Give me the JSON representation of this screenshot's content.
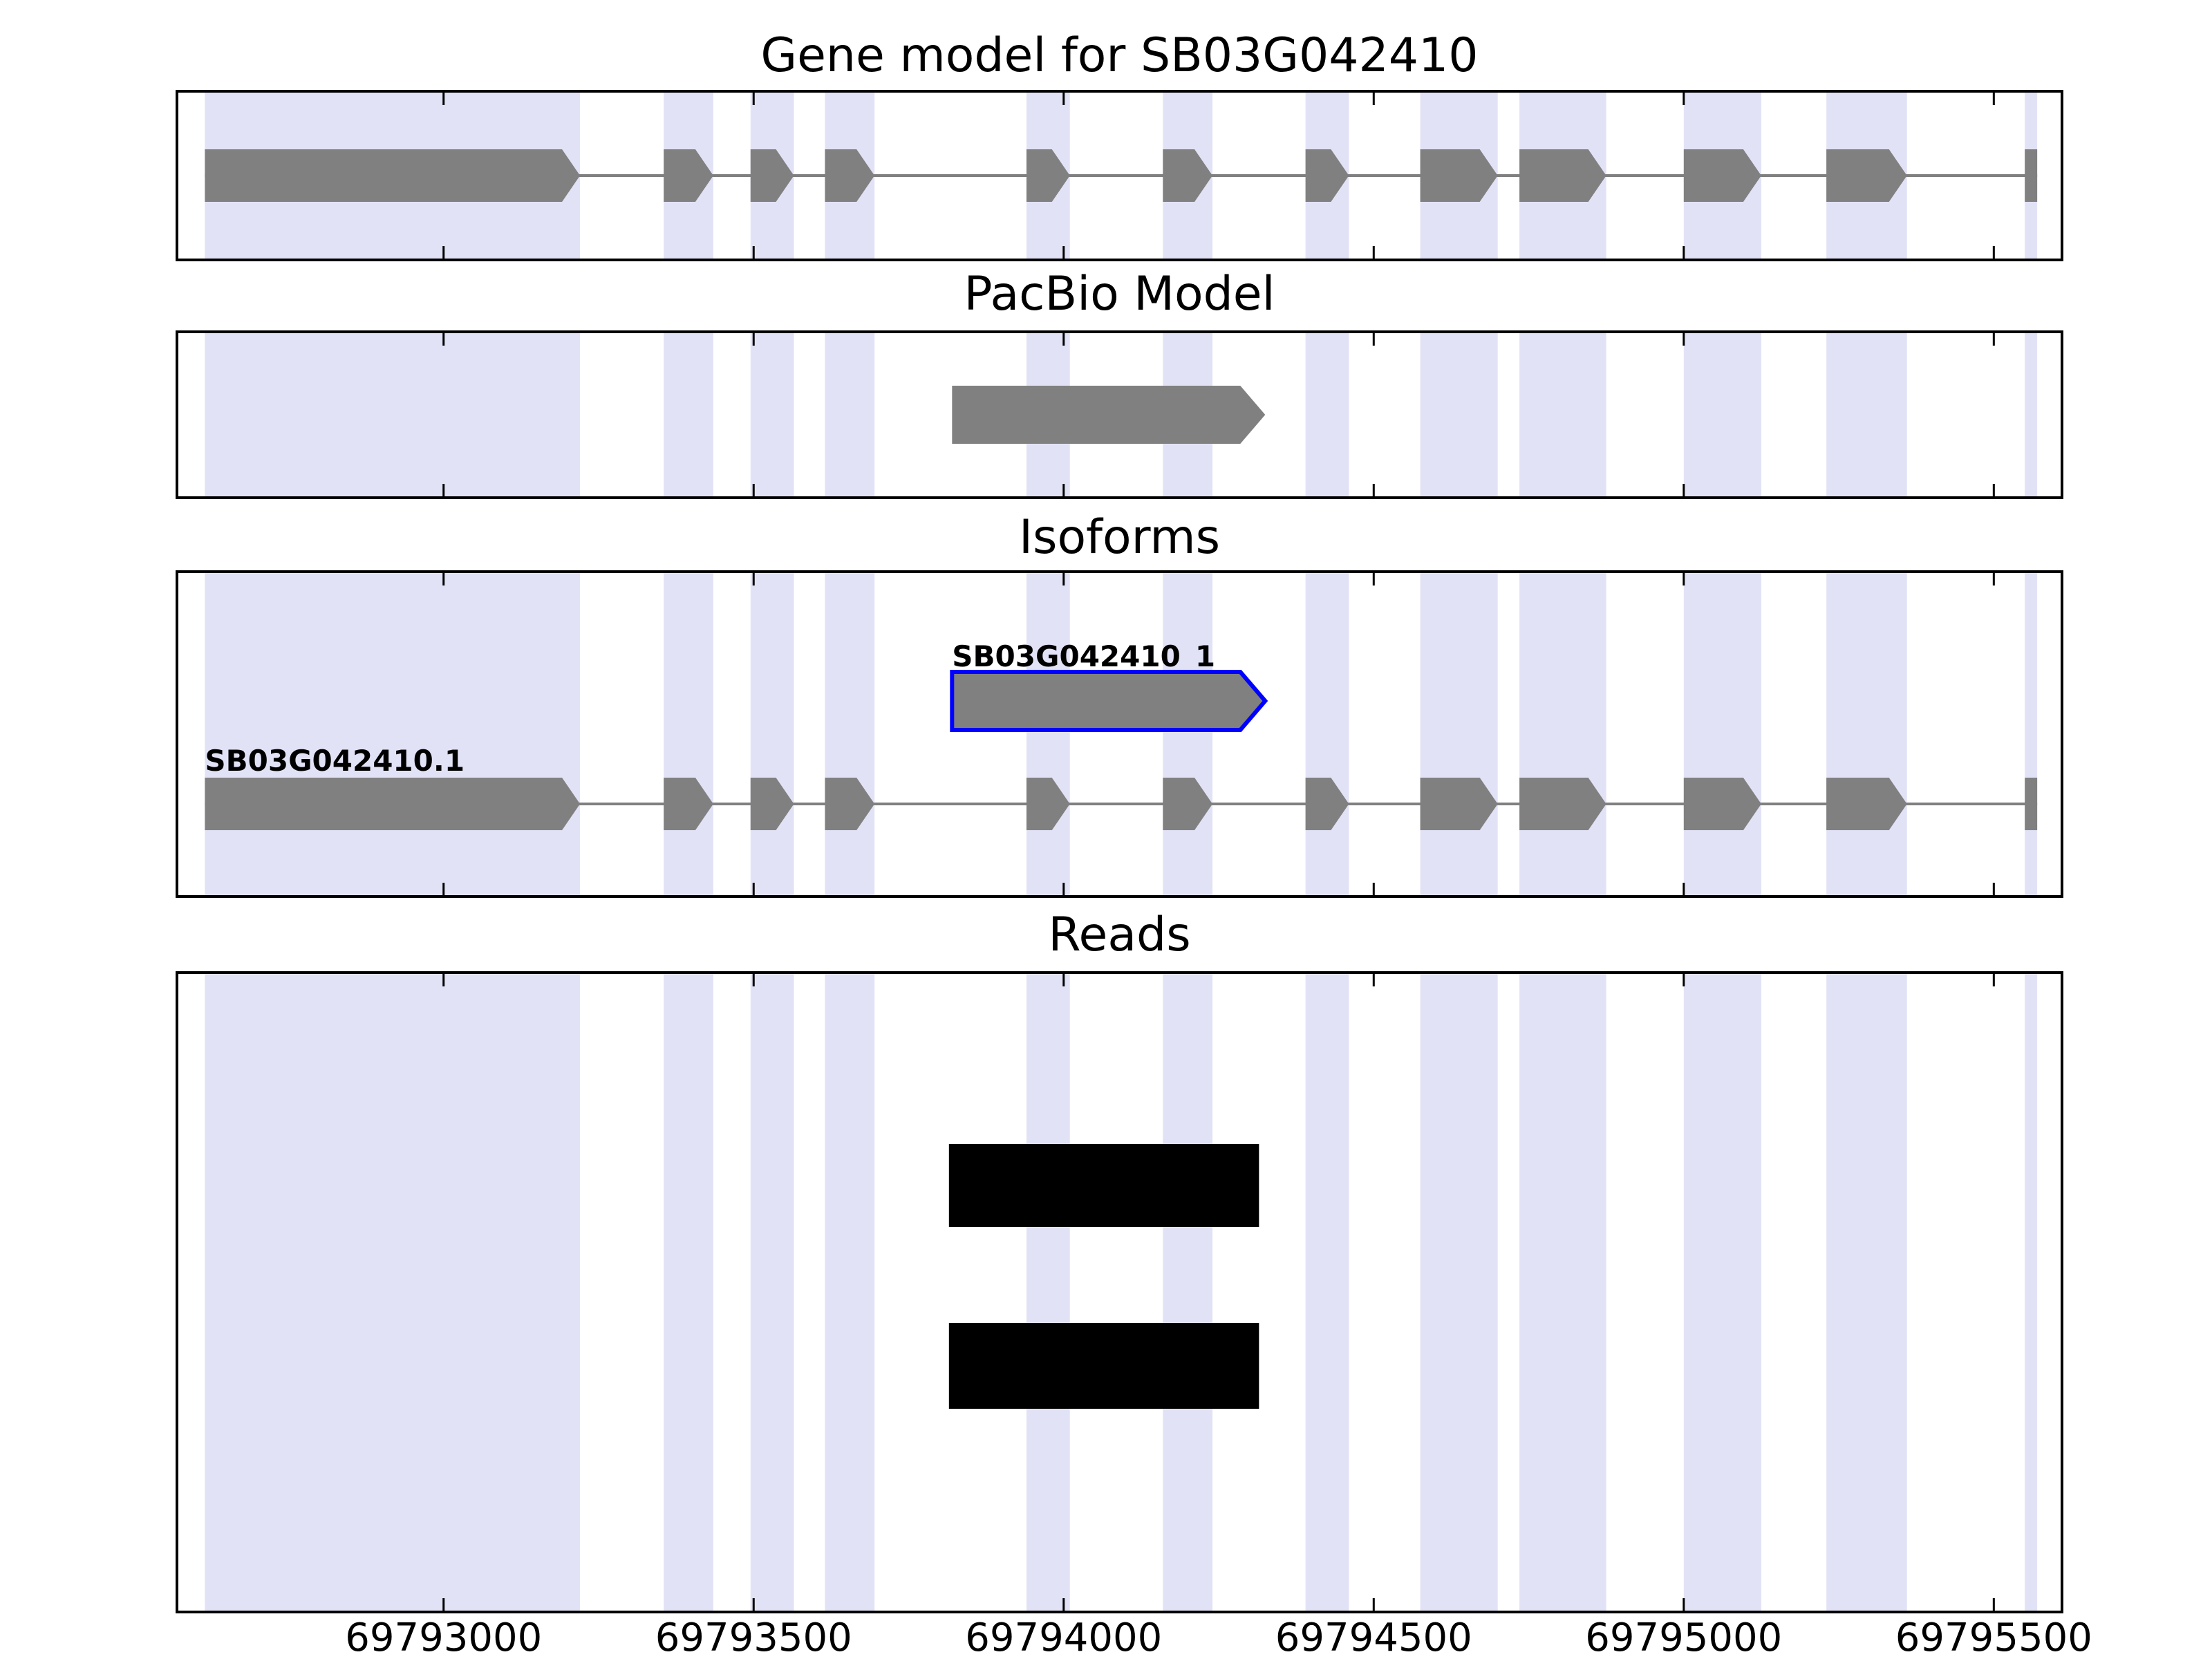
{
  "figure": {
    "background": "#ffffff"
  },
  "colors": {
    "exon_fill": "#808080",
    "intron_line": "#808080",
    "highlight_band": "#E2E2F7",
    "selected_outline": "#0000FF",
    "read_fill": "#000000",
    "panel_border": "#000000",
    "text": "#000000"
  },
  "chart_data": {
    "type": "genome-tracks",
    "title": "Gene model for SB03G042410",
    "xlim": [
      69792570,
      69795610
    ],
    "x_ticks": [
      69793000,
      69793500,
      69794000,
      69794500,
      69795000,
      69795500
    ],
    "x_tick_labels": [
      "69793000",
      "69793500",
      "69794000",
      "69794500",
      "69795000",
      "69795500"
    ],
    "grid": false,
    "highlight_regions": [
      [
        69792615,
        69793220
      ],
      [
        69793355,
        69793435
      ],
      [
        69793495,
        69793565
      ],
      [
        69793615,
        69793695
      ],
      [
        69793940,
        69794010
      ],
      [
        69794160,
        69794240
      ],
      [
        69794390,
        69794460
      ],
      [
        69794575,
        69794700
      ],
      [
        69794735,
        69794875
      ],
      [
        69795000,
        69795125
      ],
      [
        69795230,
        69795360
      ],
      [
        69795550,
        69795570
      ]
    ],
    "gene_model_span": [
      69792615,
      69795570
    ],
    "gene_model_exons": [
      {
        "start": 69792615,
        "end": 69793220,
        "shape": "arrow"
      },
      {
        "start": 69793355,
        "end": 69793435,
        "shape": "arrow"
      },
      {
        "start": 69793495,
        "end": 69793565,
        "shape": "arrow"
      },
      {
        "start": 69793615,
        "end": 69793695,
        "shape": "arrow"
      },
      {
        "start": 69793940,
        "end": 69794010,
        "shape": "arrow"
      },
      {
        "start": 69794160,
        "end": 69794240,
        "shape": "arrow"
      },
      {
        "start": 69794390,
        "end": 69794460,
        "shape": "arrow"
      },
      {
        "start": 69794575,
        "end": 69794700,
        "shape": "arrow"
      },
      {
        "start": 69794735,
        "end": 69794875,
        "shape": "arrow"
      },
      {
        "start": 69795000,
        "end": 69795125,
        "shape": "arrow"
      },
      {
        "start": 69795230,
        "end": 69795360,
        "shape": "arrow"
      },
      {
        "start": 69795550,
        "end": 69795570,
        "shape": "bar"
      }
    ],
    "tracks": [
      {
        "id": "gene-model",
        "title": "Gene model for SB03G042410",
        "model": "gene_model"
      },
      {
        "id": "pacbio",
        "title": "PacBio Model",
        "features": [
          {
            "start": 69793820,
            "end": 69794325,
            "shape": "arrow"
          }
        ]
      },
      {
        "id": "isoforms",
        "title": "Isoforms",
        "isoforms": [
          {
            "label": "SB03G042410_1",
            "selected": true,
            "start": 69793820,
            "end": 69794325,
            "shape": "arrow"
          },
          {
            "label": "SB03G042410.1",
            "selected": false,
            "model": "gene_model"
          }
        ]
      },
      {
        "id": "reads",
        "title": "Reads",
        "reads": [
          {
            "start": 69793815,
            "end": 69794315
          },
          {
            "start": 69793815,
            "end": 69794315
          }
        ]
      }
    ]
  }
}
